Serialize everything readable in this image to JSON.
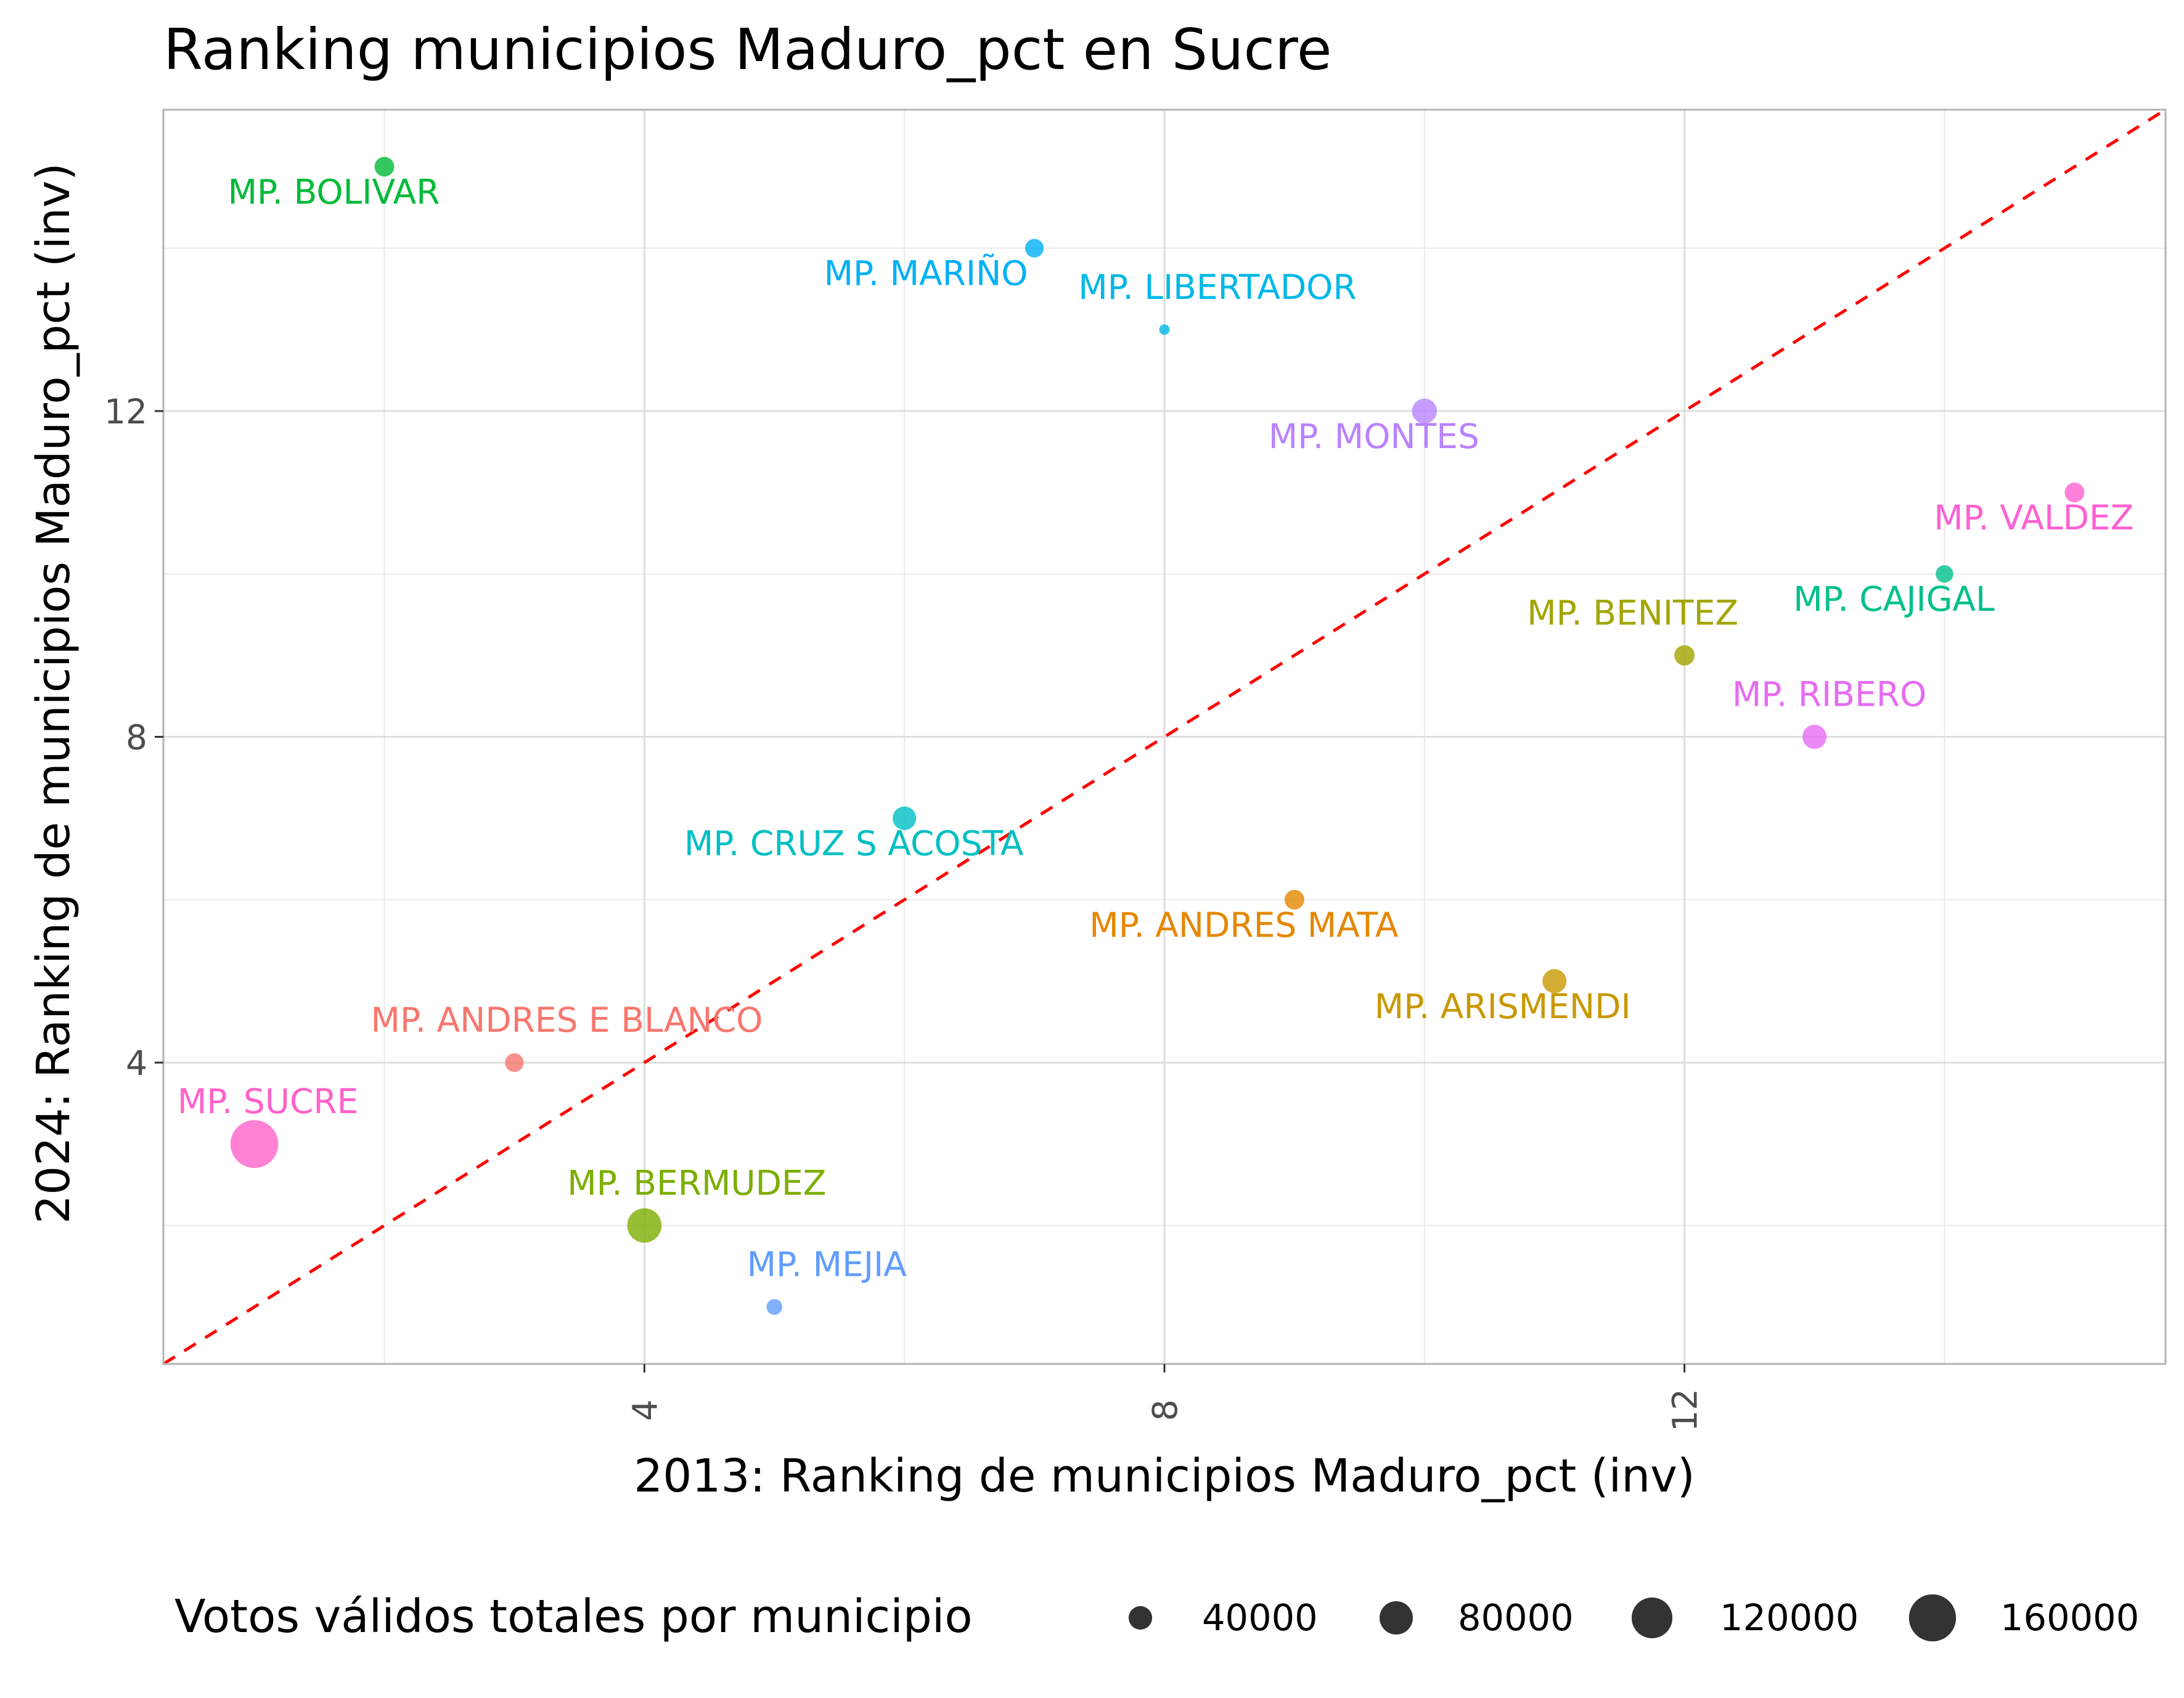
{
  "chart_data": {
    "type": "scatter",
    "title": "Ranking municipios Maduro_pct en Sucre",
    "xlabel": "2013: Ranking de municipios Maduro_pct (inv)",
    "ylabel": "2024: Ranking de municipios Maduro_pct (inv)",
    "xlim": [
      0.3,
      15.7
    ],
    "ylim": [
      0.3,
      15.7
    ],
    "x_ticks": [
      4,
      8,
      12
    ],
    "y_ticks": [
      4,
      8,
      12
    ],
    "grid": true,
    "reference_line": {
      "slope": 1,
      "intercept": 0,
      "style": "dashed",
      "color": "#ff0000"
    },
    "size_legend": {
      "title": "Votos válidos totales por municipio",
      "position": "bottom",
      "entries": [
        {
          "label": "40000",
          "value": 40000
        },
        {
          "label": "80000",
          "value": 80000
        },
        {
          "label": "120000",
          "value": 120000
        },
        {
          "label": "160000",
          "value": 160000
        }
      ]
    },
    "points": [
      {
        "name": "MP. SUCRE",
        "x": 1,
        "y": 3,
        "votes": 165000,
        "color": "#ff61c9"
      },
      {
        "name": "MP. BOLIVAR",
        "x": 2,
        "y": 15,
        "votes": 28000,
        "color": "#00ba38"
      },
      {
        "name": "MP. ANDRES E BLANCO",
        "x": 3,
        "y": 4,
        "votes": 25000,
        "color": "#f8766d"
      },
      {
        "name": "MP. BERMUDEZ",
        "x": 4,
        "y": 2,
        "votes": 85000,
        "color": "#7cae00"
      },
      {
        "name": "MP. MEJIA",
        "x": 5,
        "y": 1,
        "votes": 18000,
        "color": "#619cff"
      },
      {
        "name": "MP. CRUZ S ACOSTA",
        "x": 6,
        "y": 7,
        "votes": 40000,
        "color": "#00bfc4"
      },
      {
        "name": "MP. MARIÑO",
        "x": 7,
        "y": 14,
        "votes": 25000,
        "color": "#00b0f6"
      },
      {
        "name": "MP. LIBERTADOR",
        "x": 8,
        "y": 13,
        "votes": 8000,
        "color": "#00b8e7"
      },
      {
        "name": "MP. ANDRES MATA",
        "x": 9,
        "y": 6,
        "votes": 28000,
        "color": "#e58700"
      },
      {
        "name": "MP. MONTES",
        "x": 10,
        "y": 12,
        "votes": 45000,
        "color": "#b983ff"
      },
      {
        "name": "MP. ARISMENDI",
        "x": 11,
        "y": 5,
        "votes": 42000,
        "color": "#c99800"
      },
      {
        "name": "MP. BENITEZ",
        "x": 12,
        "y": 9,
        "votes": 30000,
        "color": "#a3a500"
      },
      {
        "name": "MP. RIBERO",
        "x": 13,
        "y": 8,
        "votes": 42000,
        "color": "#e76bf3"
      },
      {
        "name": "MP. CAJIGAL",
        "x": 14,
        "y": 10,
        "votes": 22000,
        "color": "#00c08b"
      },
      {
        "name": "MP. VALDEZ",
        "x": 15,
        "y": 11,
        "votes": 28000,
        "color": "#fd61d1"
      }
    ]
  }
}
